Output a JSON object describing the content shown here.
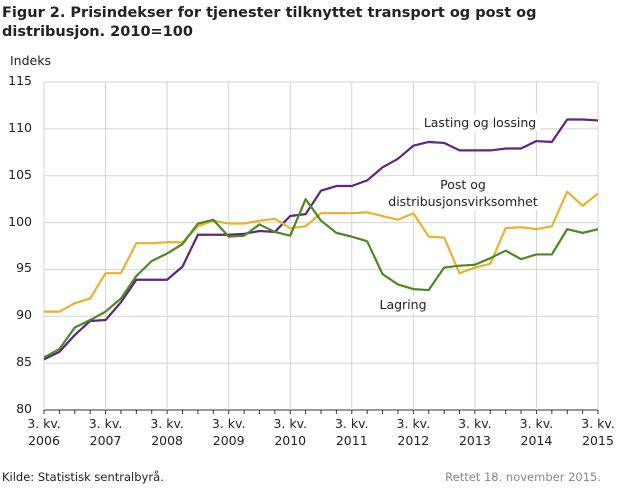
{
  "chart_data": {
    "type": "line",
    "title": "Figur 2. Prisindekser for tjenester tilknyttet transport og post og distribusjon. 2010=100",
    "y_label": "Indeks",
    "source": "Kilde: Statistisk sentralbyrå.",
    "note": "Rettet 18. november 2015.",
    "categories": [
      "3. kv. 2006",
      null,
      null,
      null,
      "3. kv. 2007",
      null,
      null,
      null,
      "3. kv. 2008",
      null,
      null,
      null,
      "3. kv. 2009",
      null,
      null,
      null,
      "3. kv. 2010",
      null,
      null,
      null,
      "3. kv. 2011",
      null,
      null,
      null,
      "3. kv. 2012",
      null,
      null,
      null,
      "3. kv. 2013",
      null,
      null,
      null,
      "3. kv. 2014",
      null,
      null,
      null,
      "3. kv. 2015"
    ],
    "series": [
      {
        "name": "Lasting og lossing",
        "color": "#5c2483",
        "values": [
          85.4,
          86.2,
          88.0,
          89.5,
          89.6,
          91.5,
          93.9,
          93.9,
          93.9,
          95.3,
          98.7,
          98.7,
          98.7,
          98.8,
          99.1,
          99.0,
          100.7,
          100.9,
          103.4,
          103.9,
          103.9,
          104.5,
          105.9,
          106.8,
          108.2,
          108.6,
          108.5,
          107.7,
          107.7,
          107.7,
          107.9,
          107.9,
          108.7,
          108.6,
          111.0,
          111.0,
          110.9
        ]
      },
      {
        "name": "Post og distribusjonsvirksomhet",
        "color": "#eab12c",
        "values": [
          90.5,
          90.5,
          91.4,
          91.9,
          94.6,
          94.6,
          97.8,
          97.8,
          97.9,
          97.9,
          99.6,
          100.2,
          99.9,
          99.9,
          100.2,
          100.4,
          99.4,
          99.6,
          101.0,
          101.0,
          101.0,
          101.1,
          100.7,
          100.3,
          101.0,
          98.5,
          98.4,
          94.6,
          95.2,
          95.6,
          99.4,
          99.5,
          99.3,
          99.6,
          103.3,
          101.8,
          103.1
        ]
      },
      {
        "name": "Lagring",
        "color": "#4a8a21",
        "values": [
          85.6,
          86.5,
          88.8,
          89.6,
          90.5,
          91.9,
          94.3,
          95.9,
          96.7,
          97.7,
          99.9,
          100.3,
          98.5,
          98.6,
          99.8,
          99.0,
          98.6,
          102.5,
          100.2,
          98.9,
          98.5,
          98.0,
          94.5,
          93.4,
          92.9,
          92.8,
          95.2,
          95.4,
          95.5,
          96.2,
          97.0,
          96.1,
          96.6,
          96.6,
          99.3,
          98.9,
          99.3
        ]
      }
    ],
    "ylim": [
      80,
      115
    ],
    "yticks": [
      80,
      85,
      90,
      95,
      100,
      105,
      110,
      115
    ],
    "grid": true
  }
}
